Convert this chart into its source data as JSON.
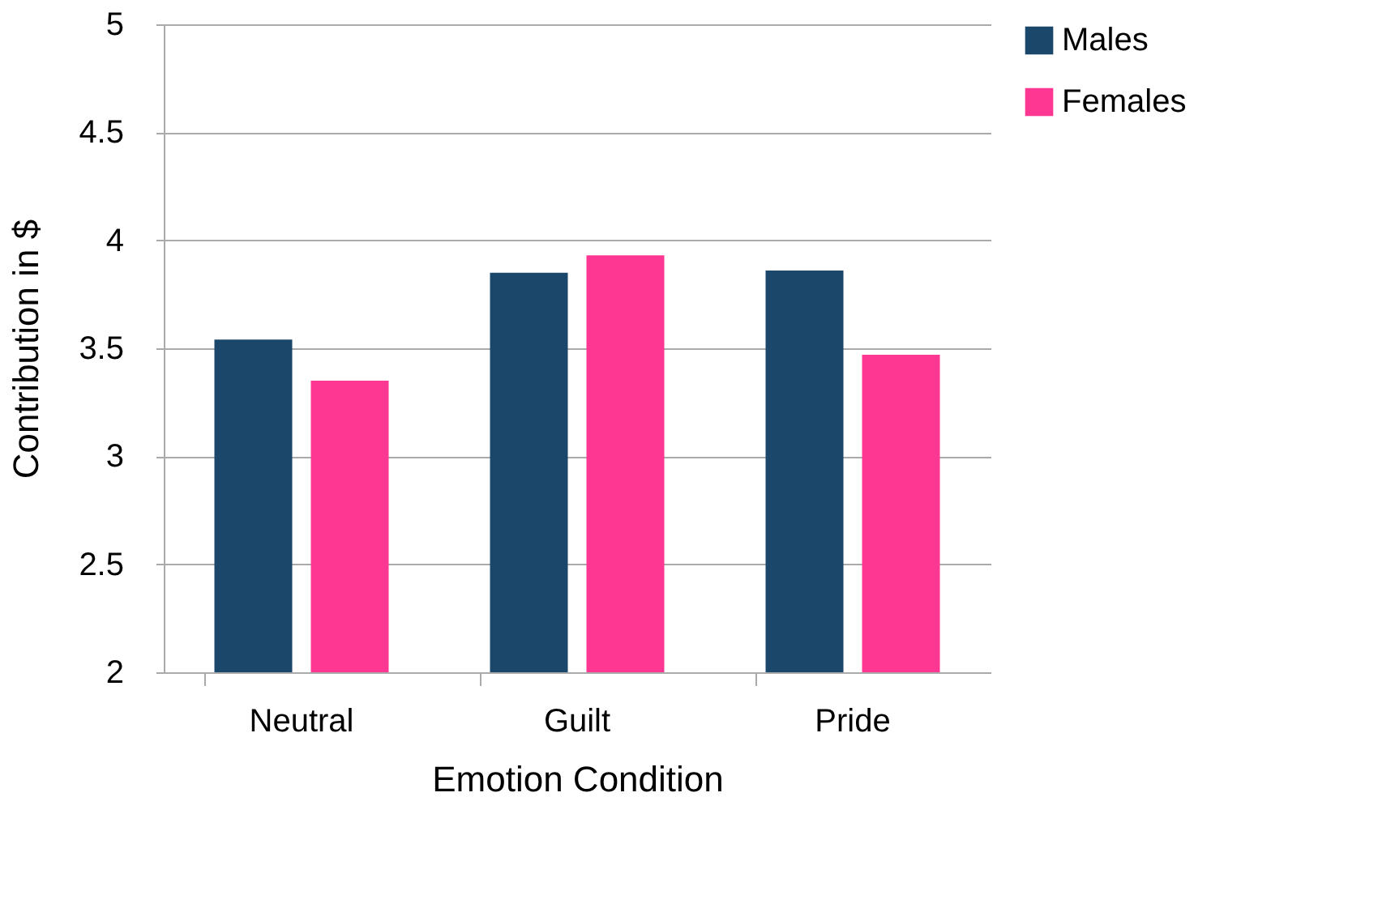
{
  "chart_data": {
    "type": "bar",
    "xlabel": "Emotion Condition",
    "ylabel": "Contribution in $",
    "categories": [
      "Neutral",
      "Guilt",
      "Pride"
    ],
    "series": [
      {
        "name": "Males",
        "color": "#1b476b",
        "values": [
          3.54,
          3.85,
          3.86
        ]
      },
      {
        "name": "Females",
        "color": "#fe3793",
        "values": [
          3.35,
          3.93,
          3.47
        ]
      }
    ],
    "ylim": [
      2,
      5
    ],
    "yticks": [
      2,
      2.5,
      3,
      3.5,
      4,
      4.5,
      5
    ],
    "grid": "y",
    "legend": "right"
  }
}
